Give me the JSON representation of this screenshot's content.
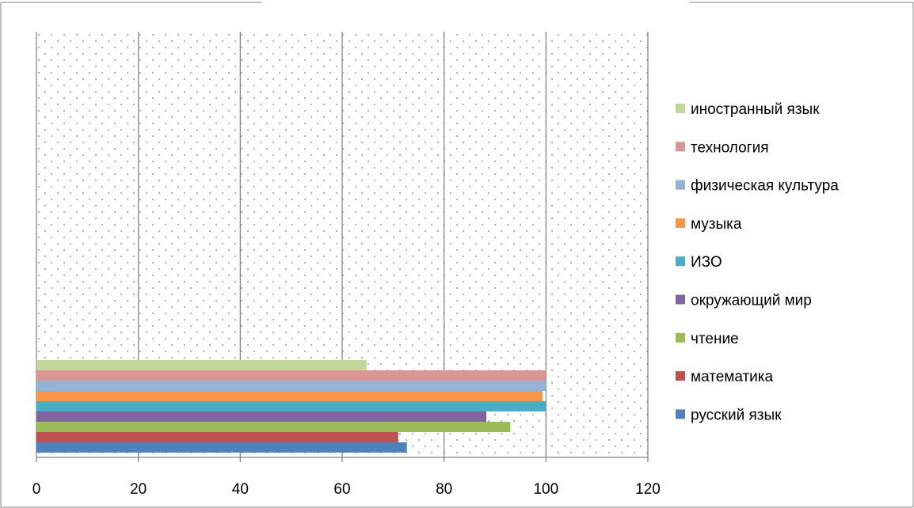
{
  "chart_data": {
    "type": "bar",
    "orientation": "horizontal",
    "title": "",
    "xlabel": "",
    "ylabel": "",
    "xlim": [
      0,
      120
    ],
    "xticks": [
      0,
      20,
      40,
      60,
      80,
      100,
      120
    ],
    "grid": true,
    "legend_position": "right",
    "series": [
      {
        "name": "русский язык",
        "color": "#4f81bd",
        "values": [
          72.7
        ]
      },
      {
        "name": "математика",
        "color": "#c0504d",
        "values": [
          71
        ]
      },
      {
        "name": "чтение",
        "color": "#9bbb59",
        "values": [
          93
        ]
      },
      {
        "name": "окружающий мир",
        "color": "#8064a2",
        "values": [
          88.3
        ]
      },
      {
        "name": "ИЗО",
        "color": "#4bacc6",
        "values": [
          100
        ]
      },
      {
        "name": "музыка",
        "color": "#f79646",
        "values": [
          99.3
        ]
      },
      {
        "name": "физическая культура",
        "color": "#95b3d7",
        "values": [
          100
        ]
      },
      {
        "name": "технология",
        "color": "#d99694",
        "values": [
          100
        ]
      },
      {
        "name": "иностранный язык",
        "color": "#c3d69b",
        "values": [
          64.8
        ]
      }
    ],
    "plot_area_fill": "dotted",
    "plot_area_dot_color": "#8db3e2"
  }
}
